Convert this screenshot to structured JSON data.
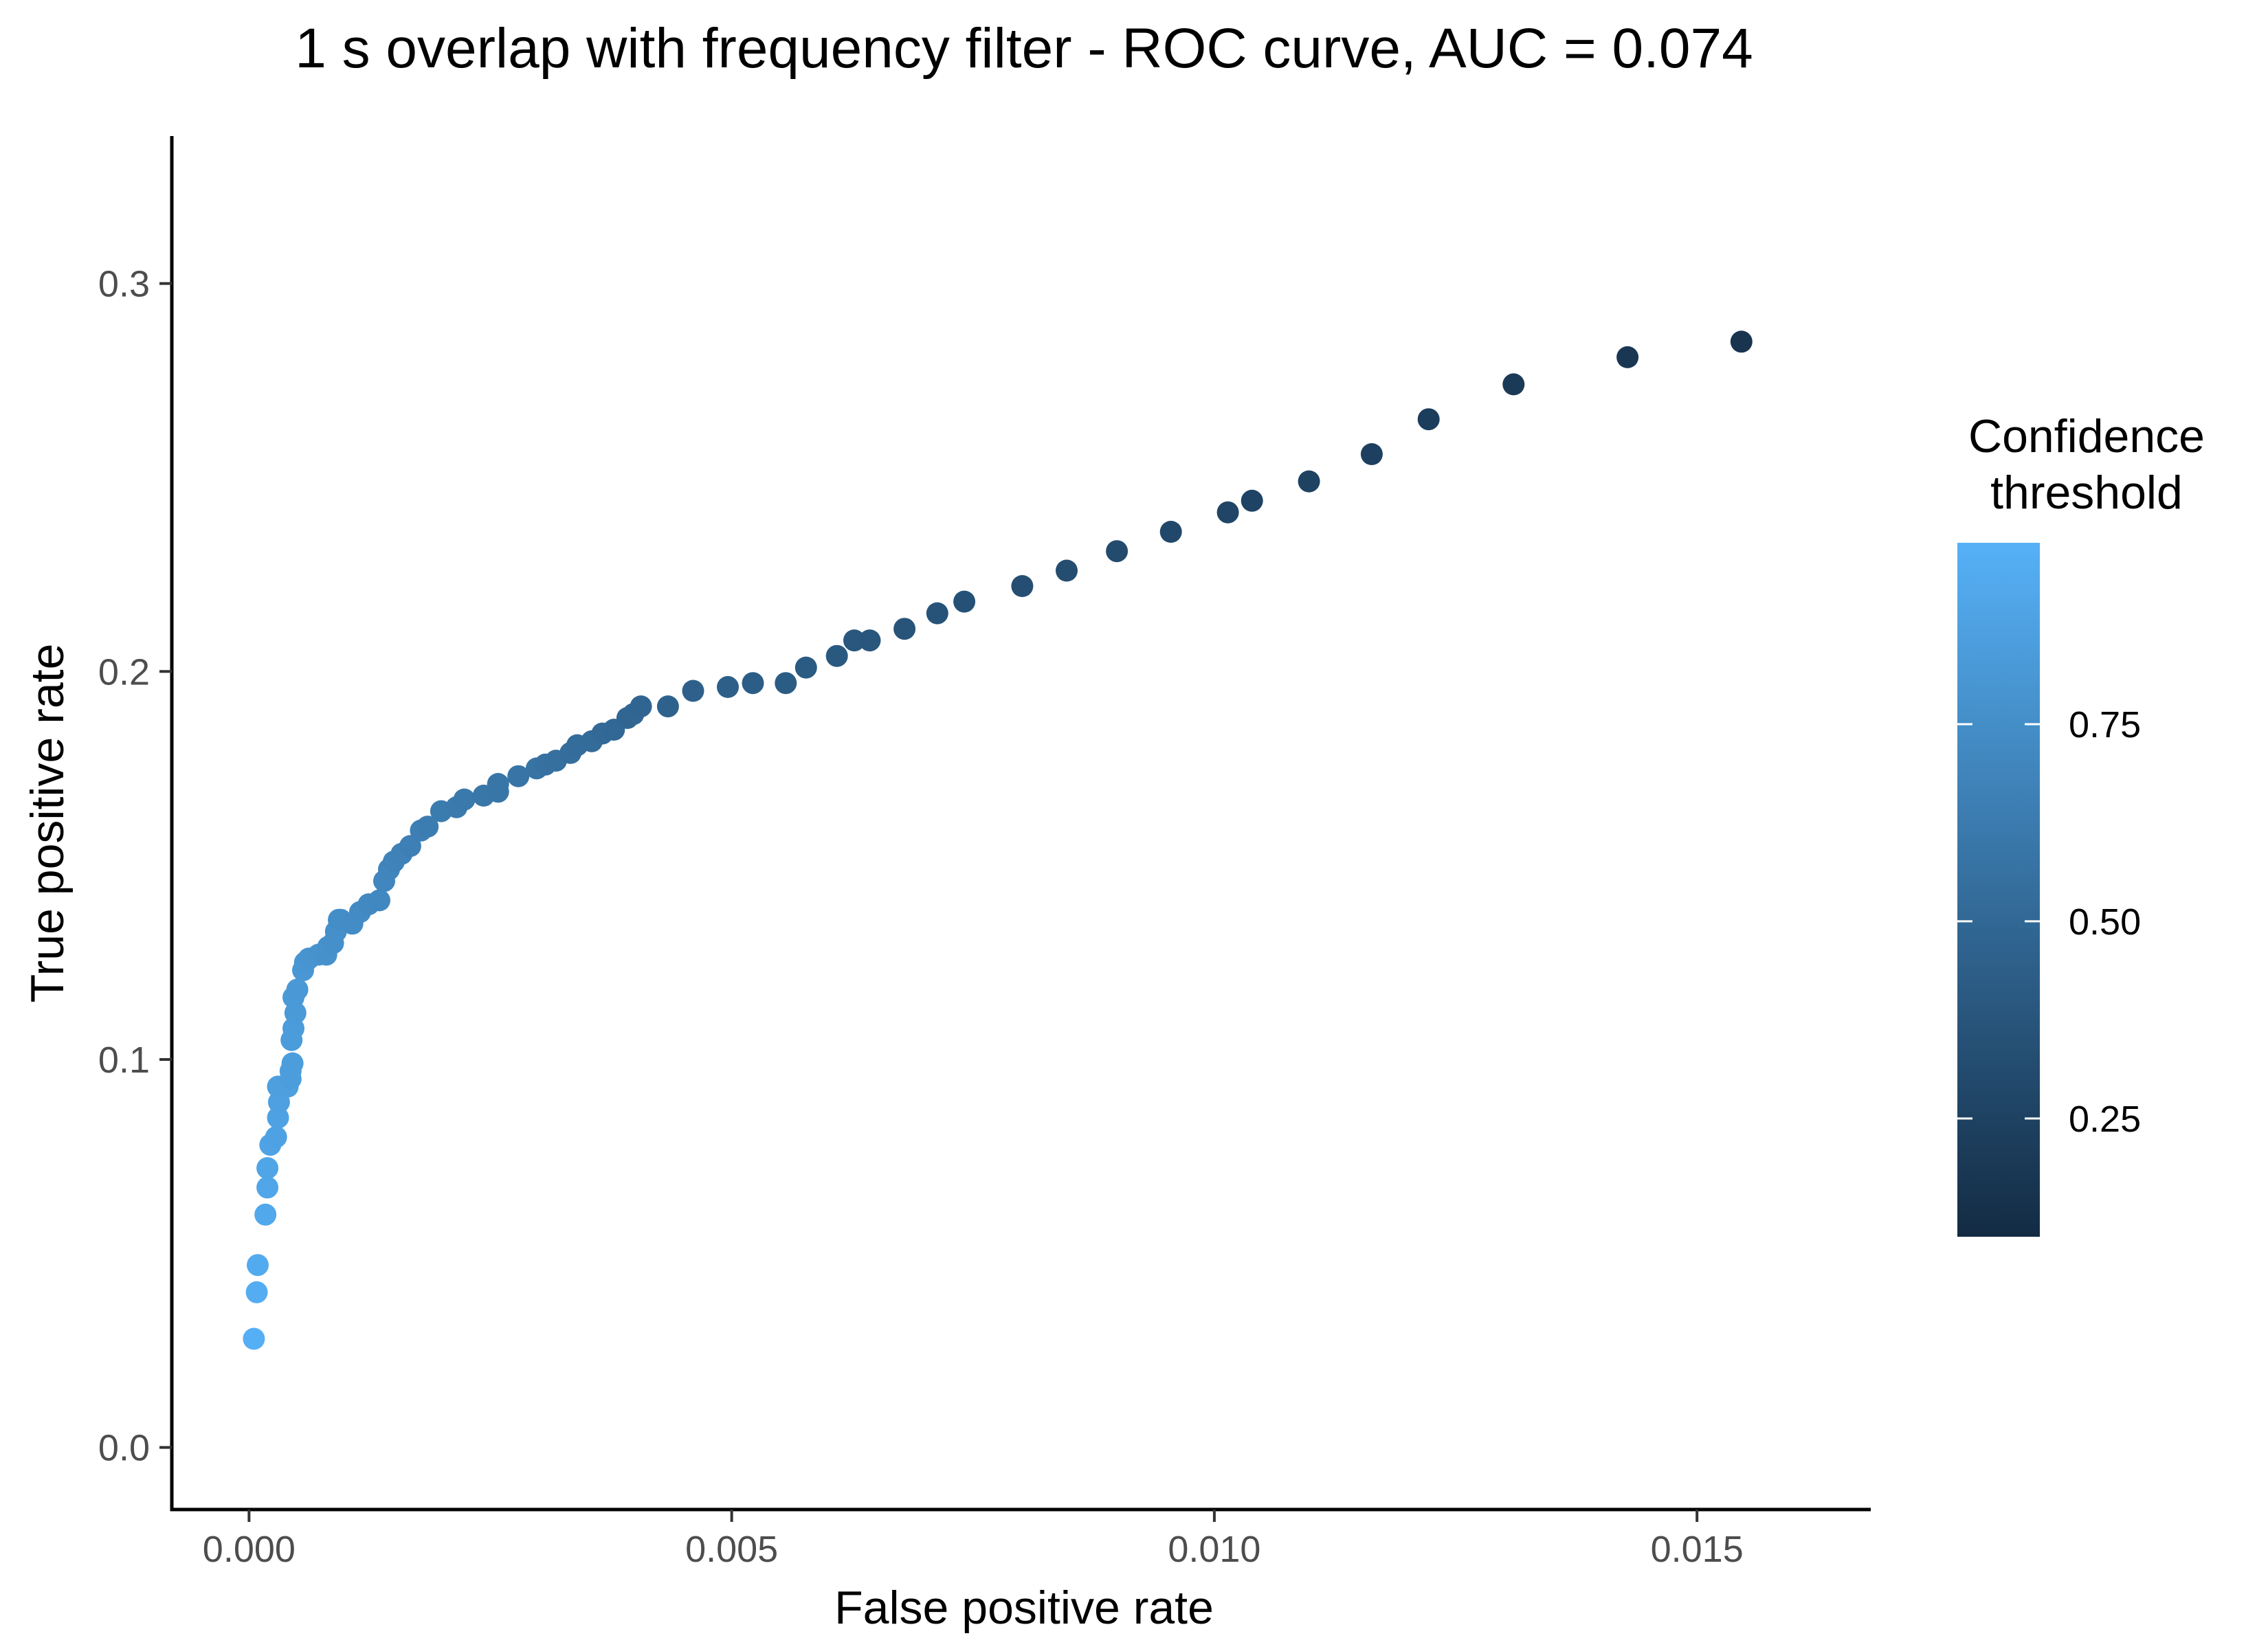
{
  "chart_data": {
    "type": "scatter",
    "title": "1 s overlap with frequency filter - ROC curve, AUC = 0.074",
    "xlabel": "False positive rate",
    "ylabel": "True positive rate",
    "xlim": [
      -0.0008,
      0.0168
    ],
    "ylim": [
      -0.016,
      0.338
    ],
    "x_ticks": [
      0.0,
      0.005,
      0.01,
      0.015
    ],
    "x_tick_labels": [
      "0.000",
      "0.005",
      "0.010",
      "0.015"
    ],
    "y_ticks": [
      0.0,
      0.1,
      0.2,
      0.3
    ],
    "y_tick_labels": [
      "0.0",
      "0.1",
      "0.2",
      "0.3"
    ],
    "grid": false,
    "legend": {
      "title_lines": [
        "Confidence",
        "threshold"
      ],
      "placement": "right",
      "range": [
        0.1,
        0.98
      ],
      "ticks": [
        0.25,
        0.5,
        0.75
      ],
      "tick_labels": [
        "0.25",
        "0.50",
        "0.75"
      ],
      "color_low": "#132b43",
      "color_high": "#56b1f7"
    },
    "x": [
      5e-05,
      8e-05,
      9e-05,
      0.00017,
      0.00019,
      0.00019,
      0.00022,
      0.00028,
      0.0003,
      0.00031,
      0.0003,
      0.0004,
      0.00043,
      0.00043,
      0.00045,
      0.00044,
      0.00046,
      0.00048,
      0.00046,
      0.0005,
      0.00056,
      0.00058,
      0.00062,
      0.00072,
      0.0008,
      0.00082,
      0.00087,
      0.0009,
      0.00093,
      0.00095,
      0.00107,
      0.00115,
      0.00124,
      0.00135,
      0.0014,
      0.00145,
      0.0015,
      0.00158,
      0.00167,
      0.00178,
      0.00185,
      0.00199,
      0.00215,
      0.00223,
      0.00243,
      0.00258,
      0.00258,
      0.00279,
      0.00298,
      0.00307,
      0.00318,
      0.00333,
      0.0034,
      0.00355,
      0.00366,
      0.00378,
      0.00392,
      0.00398,
      0.00406,
      0.00434,
      0.0046,
      0.00496,
      0.00522,
      0.00556,
      0.00577,
      0.00609,
      0.00627,
      0.00643,
      0.00679,
      0.00713,
      0.00741,
      0.00801,
      0.00847,
      0.00899,
      0.00955,
      0.01014,
      0.01039,
      0.01098,
      0.01163,
      0.01222,
      0.0131,
      0.01428,
      0.01546
    ],
    "y": [
      0.028,
      0.04,
      0.047,
      0.06,
      0.067,
      0.072,
      0.078,
      0.08,
      0.085,
      0.089,
      0.093,
      0.093,
      0.095,
      0.097,
      0.099,
      0.105,
      0.108,
      0.112,
      0.116,
      0.118,
      0.123,
      0.125,
      0.126,
      0.127,
      0.127,
      0.129,
      0.13,
      0.133,
      0.136,
      0.136,
      0.135,
      0.138,
      0.14,
      0.141,
      0.146,
      0.149,
      0.151,
      0.153,
      0.155,
      0.159,
      0.16,
      0.164,
      0.165,
      0.167,
      0.168,
      0.169,
      0.171,
      0.173,
      0.175,
      0.176,
      0.177,
      0.179,
      0.181,
      0.182,
      0.184,
      0.185,
      0.188,
      0.189,
      0.191,
      0.191,
      0.195,
      0.196,
      0.197,
      0.197,
      0.201,
      0.204,
      0.208,
      0.208,
      0.211,
      0.215,
      0.218,
      0.222,
      0.226,
      0.231,
      0.236,
      0.241,
      0.244,
      0.249,
      0.256,
      0.265,
      0.274,
      0.281,
      0.285
    ],
    "confidence": [
      0.97,
      0.95,
      0.94,
      0.92,
      0.91,
      0.9,
      0.89,
      0.88,
      0.88,
      0.87,
      0.86,
      0.86,
      0.85,
      0.85,
      0.85,
      0.84,
      0.84,
      0.83,
      0.83,
      0.82,
      0.81,
      0.8,
      0.79,
      0.78,
      0.77,
      0.77,
      0.76,
      0.76,
      0.75,
      0.75,
      0.74,
      0.73,
      0.72,
      0.71,
      0.7,
      0.69,
      0.68,
      0.67,
      0.66,
      0.65,
      0.64,
      0.63,
      0.62,
      0.61,
      0.6,
      0.59,
      0.59,
      0.58,
      0.57,
      0.56,
      0.55,
      0.54,
      0.53,
      0.52,
      0.51,
      0.5,
      0.49,
      0.49,
      0.48,
      0.46,
      0.45,
      0.44,
      0.43,
      0.42,
      0.41,
      0.4,
      0.39,
      0.38,
      0.37,
      0.36,
      0.35,
      0.33,
      0.32,
      0.31,
      0.29,
      0.27,
      0.26,
      0.25,
      0.24,
      0.22,
      0.2,
      0.18,
      0.16
    ]
  }
}
